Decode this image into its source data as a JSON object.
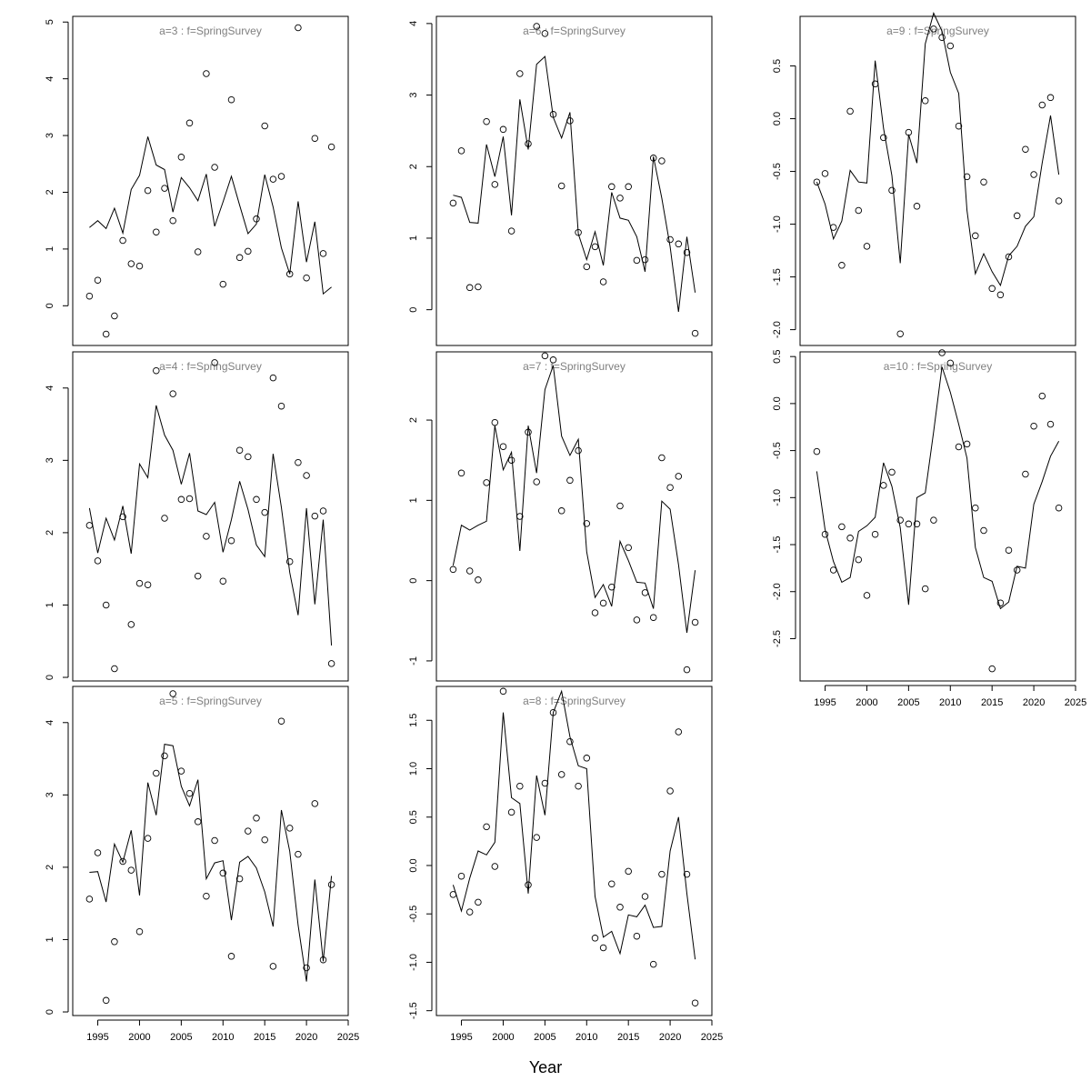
{
  "xlabel": "Year",
  "chart_data": [
    {
      "type": "line",
      "title": "a=3  :  f=SpringSurvey",
      "xlim": [
        1992,
        2025
      ],
      "xticks": [
        1995,
        2000,
        2005,
        2010,
        2015,
        2020,
        2025
      ],
      "ylim": [
        -0.7,
        5.1
      ],
      "yticks": [
        0,
        1,
        2,
        3,
        4,
        5
      ],
      "x": [
        1994,
        1995,
        1996,
        1997,
        1998,
        1999,
        2000,
        2001,
        2002,
        2003,
        2004,
        2005,
        2006,
        2007,
        2008,
        2009,
        2010,
        2011,
        2012,
        2013,
        2014,
        2015,
        2016,
        2017,
        2018,
        2019,
        2020,
        2021,
        2022,
        2023
      ],
      "fitted": [
        1.38,
        1.5,
        1.36,
        1.72,
        1.28,
        2.05,
        2.3,
        2.98,
        2.48,
        2.4,
        1.65,
        2.26,
        2.08,
        1.85,
        2.32,
        1.4,
        1.83,
        2.28,
        1.77,
        1.27,
        1.44,
        2.31,
        1.74,
        1.02,
        0.56,
        1.84,
        0.77,
        1.48,
        0.21,
        0.33
      ],
      "observed": [
        0.17,
        0.45,
        -0.5,
        -0.18,
        1.15,
        0.74,
        0.7,
        2.03,
        1.3,
        2.07,
        1.5,
        2.62,
        3.22,
        0.95,
        4.09,
        2.44,
        0.38,
        3.63,
        0.85,
        0.96,
        1.53,
        3.17,
        2.23,
        2.28,
        0.56,
        4.9,
        0.49,
        2.95,
        0.92,
        2.8
      ]
    },
    {
      "type": "line",
      "title": "a=4  :  f=SpringSurvey",
      "xlim": [
        1992,
        2025
      ],
      "xticks": [
        1995,
        2000,
        2005,
        2010,
        2015,
        2020,
        2025
      ],
      "ylim": [
        -0.05,
        4.5
      ],
      "yticks": [
        0,
        1,
        2,
        3,
        4
      ],
      "x": [
        1994,
        1995,
        1996,
        1997,
        1998,
        1999,
        2000,
        2001,
        2002,
        2003,
        2004,
        2005,
        2006,
        2007,
        2008,
        2009,
        2010,
        2011,
        2012,
        2013,
        2014,
        2015,
        2016,
        2017,
        2018,
        2019,
        2020,
        2021,
        2022,
        2023
      ],
      "fitted": [
        2.34,
        1.72,
        2.2,
        1.9,
        2.37,
        1.71,
        2.95,
        2.76,
        3.76,
        3.35,
        3.14,
        2.67,
        3.1,
        2.3,
        2.25,
        2.42,
        1.73,
        2.18,
        2.71,
        2.32,
        1.83,
        1.67,
        3.09,
        2.35,
        1.45,
        0.86,
        2.34,
        1.01,
        2.18,
        0.44
      ],
      "observed": [
        2.1,
        1.61,
        1.0,
        0.12,
        2.22,
        0.73,
        1.3,
        1.28,
        4.24,
        2.2,
        3.92,
        2.46,
        2.47,
        1.4,
        1.95,
        4.35,
        1.33,
        1.89,
        3.14,
        3.05,
        2.46,
        2.28,
        4.14,
        3.75,
        1.6,
        2.97,
        2.79,
        2.23,
        2.3,
        0.19
      ]
    },
    {
      "type": "line",
      "title": "a=5  :  f=SpringSurvey",
      "xlim": [
        1992,
        2025
      ],
      "xticks": [
        1995,
        2000,
        2005,
        2010,
        2015,
        2020,
        2025
      ],
      "ylim": [
        -0.05,
        4.5
      ],
      "yticks": [
        0,
        1,
        2,
        3,
        4
      ],
      "x": [
        1994,
        1995,
        1996,
        1997,
        1998,
        1999,
        2000,
        2001,
        2002,
        2003,
        2004,
        2005,
        2006,
        2007,
        2008,
        2009,
        2010,
        2011,
        2012,
        2013,
        2014,
        2015,
        2016,
        2017,
        2018,
        2019,
        2020,
        2021,
        2022,
        2023
      ],
      "fitted": [
        1.93,
        1.94,
        1.52,
        2.32,
        2.07,
        2.51,
        1.61,
        3.17,
        2.72,
        3.7,
        3.68,
        3.12,
        2.85,
        3.21,
        1.84,
        2.06,
        2.09,
        1.27,
        2.07,
        2.15,
        1.99,
        1.66,
        1.18,
        2.79,
        2.22,
        1.2,
        0.42,
        1.83,
        0.7,
        1.88
      ],
      "observed": [
        1.56,
        2.2,
        0.16,
        0.97,
        2.08,
        1.96,
        1.11,
        2.4,
        3.3,
        3.54,
        4.4,
        3.33,
        3.02,
        2.63,
        1.6,
        2.37,
        1.92,
        0.77,
        1.84,
        2.5,
        2.68,
        2.38,
        0.63,
        4.02,
        2.54,
        2.18,
        0.61,
        2.88,
        0.72,
        1.76
      ]
    },
    {
      "type": "line",
      "title": "a=6  :  f=SpringSurvey",
      "xlim": [
        1992,
        2025
      ],
      "xticks": [
        1995,
        2000,
        2005,
        2010,
        2015,
        2020,
        2025
      ],
      "ylim": [
        -0.5,
        4.1
      ],
      "yticks": [
        0,
        1,
        2,
        3,
        4
      ],
      "x": [
        1994,
        1995,
        1996,
        1997,
        1998,
        1999,
        2000,
        2001,
        2002,
        2003,
        2004,
        2005,
        2006,
        2007,
        2008,
        2009,
        2010,
        2011,
        2012,
        2013,
        2014,
        2015,
        2016,
        2017,
        2018,
        2019,
        2020,
        2021,
        2022,
        2023
      ],
      "fitted": [
        1.6,
        1.57,
        1.22,
        1.21,
        2.31,
        1.86,
        2.42,
        1.32,
        2.94,
        2.24,
        3.43,
        3.54,
        2.69,
        2.4,
        2.76,
        1.06,
        0.7,
        1.09,
        0.62,
        1.64,
        1.28,
        1.25,
        1.02,
        0.53,
        2.14,
        1.56,
        0.88,
        -0.03,
        1.02,
        0.24
      ],
      "observed": [
        1.49,
        2.22,
        0.31,
        0.32,
        2.63,
        1.75,
        2.52,
        1.1,
        3.3,
        2.32,
        3.96,
        3.86,
        2.73,
        1.73,
        2.64,
        1.08,
        0.6,
        0.88,
        0.39,
        1.72,
        1.56,
        1.72,
        0.69,
        0.7,
        2.12,
        2.08,
        0.98,
        0.92,
        0.8,
        -0.33
      ]
    },
    {
      "type": "line",
      "title": "a=7  :  f=SpringSurvey",
      "xlim": [
        1992,
        2025
      ],
      "xticks": [
        1995,
        2000,
        2005,
        2010,
        2015,
        2020,
        2025
      ],
      "ylim": [
        -1.25,
        2.85
      ],
      "yticks": [
        -1,
        0,
        1,
        2
      ],
      "x": [
        1994,
        1995,
        1996,
        1997,
        1998,
        1999,
        2000,
        2001,
        2002,
        2003,
        2004,
        2005,
        2006,
        2007,
        2008,
        2009,
        2010,
        2011,
        2012,
        2013,
        2014,
        2015,
        2016,
        2017,
        2018,
        2019,
        2020,
        2021,
        2022,
        2023
      ],
      "fitted": [
        0.19,
        0.69,
        0.63,
        0.69,
        0.74,
        1.93,
        1.38,
        1.6,
        0.37,
        1.93,
        1.34,
        2.38,
        2.68,
        1.8,
        1.56,
        1.76,
        0.36,
        -0.21,
        -0.05,
        -0.32,
        0.49,
        0.25,
        -0.02,
        -0.03,
        -0.35,
        0.99,
        0.89,
        0.2,
        -0.65,
        0.13
      ],
      "observed": [
        0.14,
        1.34,
        0.12,
        0.01,
        1.22,
        1.97,
        1.67,
        1.5,
        0.8,
        1.85,
        1.23,
        2.8,
        2.75,
        0.87,
        1.25,
        1.62,
        0.71,
        -0.4,
        -0.28,
        -0.08,
        0.93,
        0.41,
        -0.49,
        -0.15,
        -0.46,
        1.53,
        1.16,
        1.3,
        -1.11,
        -0.52
      ]
    },
    {
      "type": "line",
      "title": "a=8  :  f=SpringSurvey",
      "xlim": [
        1992,
        2025
      ],
      "xticks": [
        1995,
        2000,
        2005,
        2010,
        2015,
        2020,
        2025
      ],
      "ylim": [
        -1.55,
        1.85
      ],
      "yticks": [
        -1.5,
        -1.0,
        -0.5,
        0.0,
        0.5,
        1.0,
        1.5
      ],
      "x": [
        1994,
        1995,
        1996,
        1997,
        1998,
        1999,
        2000,
        2001,
        2002,
        2003,
        2004,
        2005,
        2006,
        2007,
        2008,
        2009,
        2010,
        2011,
        2012,
        2013,
        2014,
        2015,
        2016,
        2017,
        2018,
        2019,
        2020,
        2021,
        2022,
        2023
      ],
      "fitted": [
        -0.2,
        -0.47,
        -0.13,
        0.15,
        0.11,
        0.24,
        1.58,
        0.7,
        0.64,
        -0.29,
        0.93,
        0.52,
        1.58,
        1.8,
        1.33,
        1.03,
        1.0,
        -0.32,
        -0.74,
        -0.68,
        -0.91,
        -0.51,
        -0.53,
        -0.41,
        -0.64,
        -0.63,
        0.15,
        0.5,
        -0.29,
        -0.97
      ],
      "observed": [
        -0.3,
        -0.11,
        -0.48,
        -0.38,
        0.4,
        -0.01,
        1.8,
        0.55,
        0.82,
        -0.2,
        0.29,
        0.85,
        1.58,
        0.94,
        1.28,
        0.82,
        1.11,
        -0.75,
        -0.85,
        -0.19,
        -0.43,
        -0.06,
        -0.73,
        -0.32,
        -1.02,
        -0.09,
        0.77,
        1.38,
        -0.09,
        -1.42
      ]
    },
    {
      "type": "line",
      "title": "a=9  :  f=SpringSurvey",
      "xlim": [
        1992,
        2025
      ],
      "xticks": [
        1995,
        2000,
        2005,
        2010,
        2015,
        2020,
        2025
      ],
      "ylim": [
        -2.15,
        0.97
      ],
      "yticks": [
        -2.0,
        -1.5,
        -1.0,
        -0.5,
        0.0,
        0.5
      ],
      "x": [
        1994,
        1995,
        1996,
        1997,
        1998,
        1999,
        2000,
        2001,
        2002,
        2003,
        2004,
        2005,
        2006,
        2007,
        2008,
        2009,
        2010,
        2011,
        2012,
        2013,
        2014,
        2015,
        2016,
        2017,
        2018,
        2019,
        2020,
        2021,
        2022,
        2023
      ],
      "fitted": [
        -0.6,
        -0.81,
        -1.14,
        -0.97,
        -0.49,
        -0.6,
        -0.61,
        0.55,
        -0.09,
        -0.54,
        -1.37,
        -0.15,
        -0.42,
        0.71,
        1.0,
        0.83,
        0.44,
        0.24,
        -0.87,
        -1.47,
        -1.28,
        -1.45,
        -1.58,
        -1.3,
        -1.21,
        -1.02,
        -0.93,
        -0.42,
        0.03,
        -0.53
      ],
      "observed": [
        -0.6,
        -0.52,
        -1.03,
        -1.39,
        0.07,
        -0.87,
        -1.21,
        0.33,
        -0.18,
        -0.68,
        -2.04,
        -0.13,
        -0.83,
        0.17,
        0.85,
        0.77,
        0.69,
        -0.07,
        -0.55,
        -1.11,
        -0.6,
        -1.61,
        -1.67,
        -1.31,
        -0.92,
        -0.29,
        -0.53,
        0.13,
        0.2,
        -0.78
      ]
    },
    {
      "type": "line",
      "title": "a=10  :  f=SpringSurvey",
      "xlim": [
        1992,
        2025
      ],
      "xticks": [
        1995,
        2000,
        2005,
        2010,
        2015,
        2020,
        2025
      ],
      "ylim": [
        -2.95,
        0.55
      ],
      "yticks": [
        -2.5,
        -2.0,
        -1.5,
        -1.0,
        -0.5,
        0.0,
        0.5
      ],
      "x": [
        1994,
        1995,
        1996,
        1997,
        1998,
        1999,
        2000,
        2001,
        2002,
        2003,
        2004,
        2005,
        2006,
        2007,
        2008,
        2009,
        2010,
        2011,
        2012,
        2013,
        2014,
        2015,
        2016,
        2017,
        2018,
        2019,
        2020,
        2021,
        2022,
        2023
      ],
      "fitted": [
        -0.72,
        -1.34,
        -1.68,
        -1.9,
        -1.85,
        -1.36,
        -1.3,
        -1.21,
        -0.63,
        -0.88,
        -1.32,
        -2.14,
        -1.0,
        -0.95,
        -0.3,
        0.39,
        0.12,
        -0.22,
        -0.58,
        -1.53,
        -1.85,
        -1.89,
        -2.18,
        -2.11,
        -1.73,
        -1.75,
        -1.07,
        -0.83,
        -0.56,
        -0.4
      ],
      "observed": [
        -0.51,
        -1.39,
        -1.77,
        -1.31,
        -1.43,
        -1.66,
        -2.04,
        -1.39,
        -0.87,
        -0.73,
        -1.24,
        -1.28,
        -1.28,
        -1.97,
        -1.24,
        0.54,
        0.43,
        -0.46,
        -0.43,
        -1.11,
        -1.35,
        -2.82,
        -2.12,
        -1.56,
        -1.77,
        -0.75,
        -0.24,
        0.08,
        -0.22,
        -1.11
      ]
    }
  ]
}
